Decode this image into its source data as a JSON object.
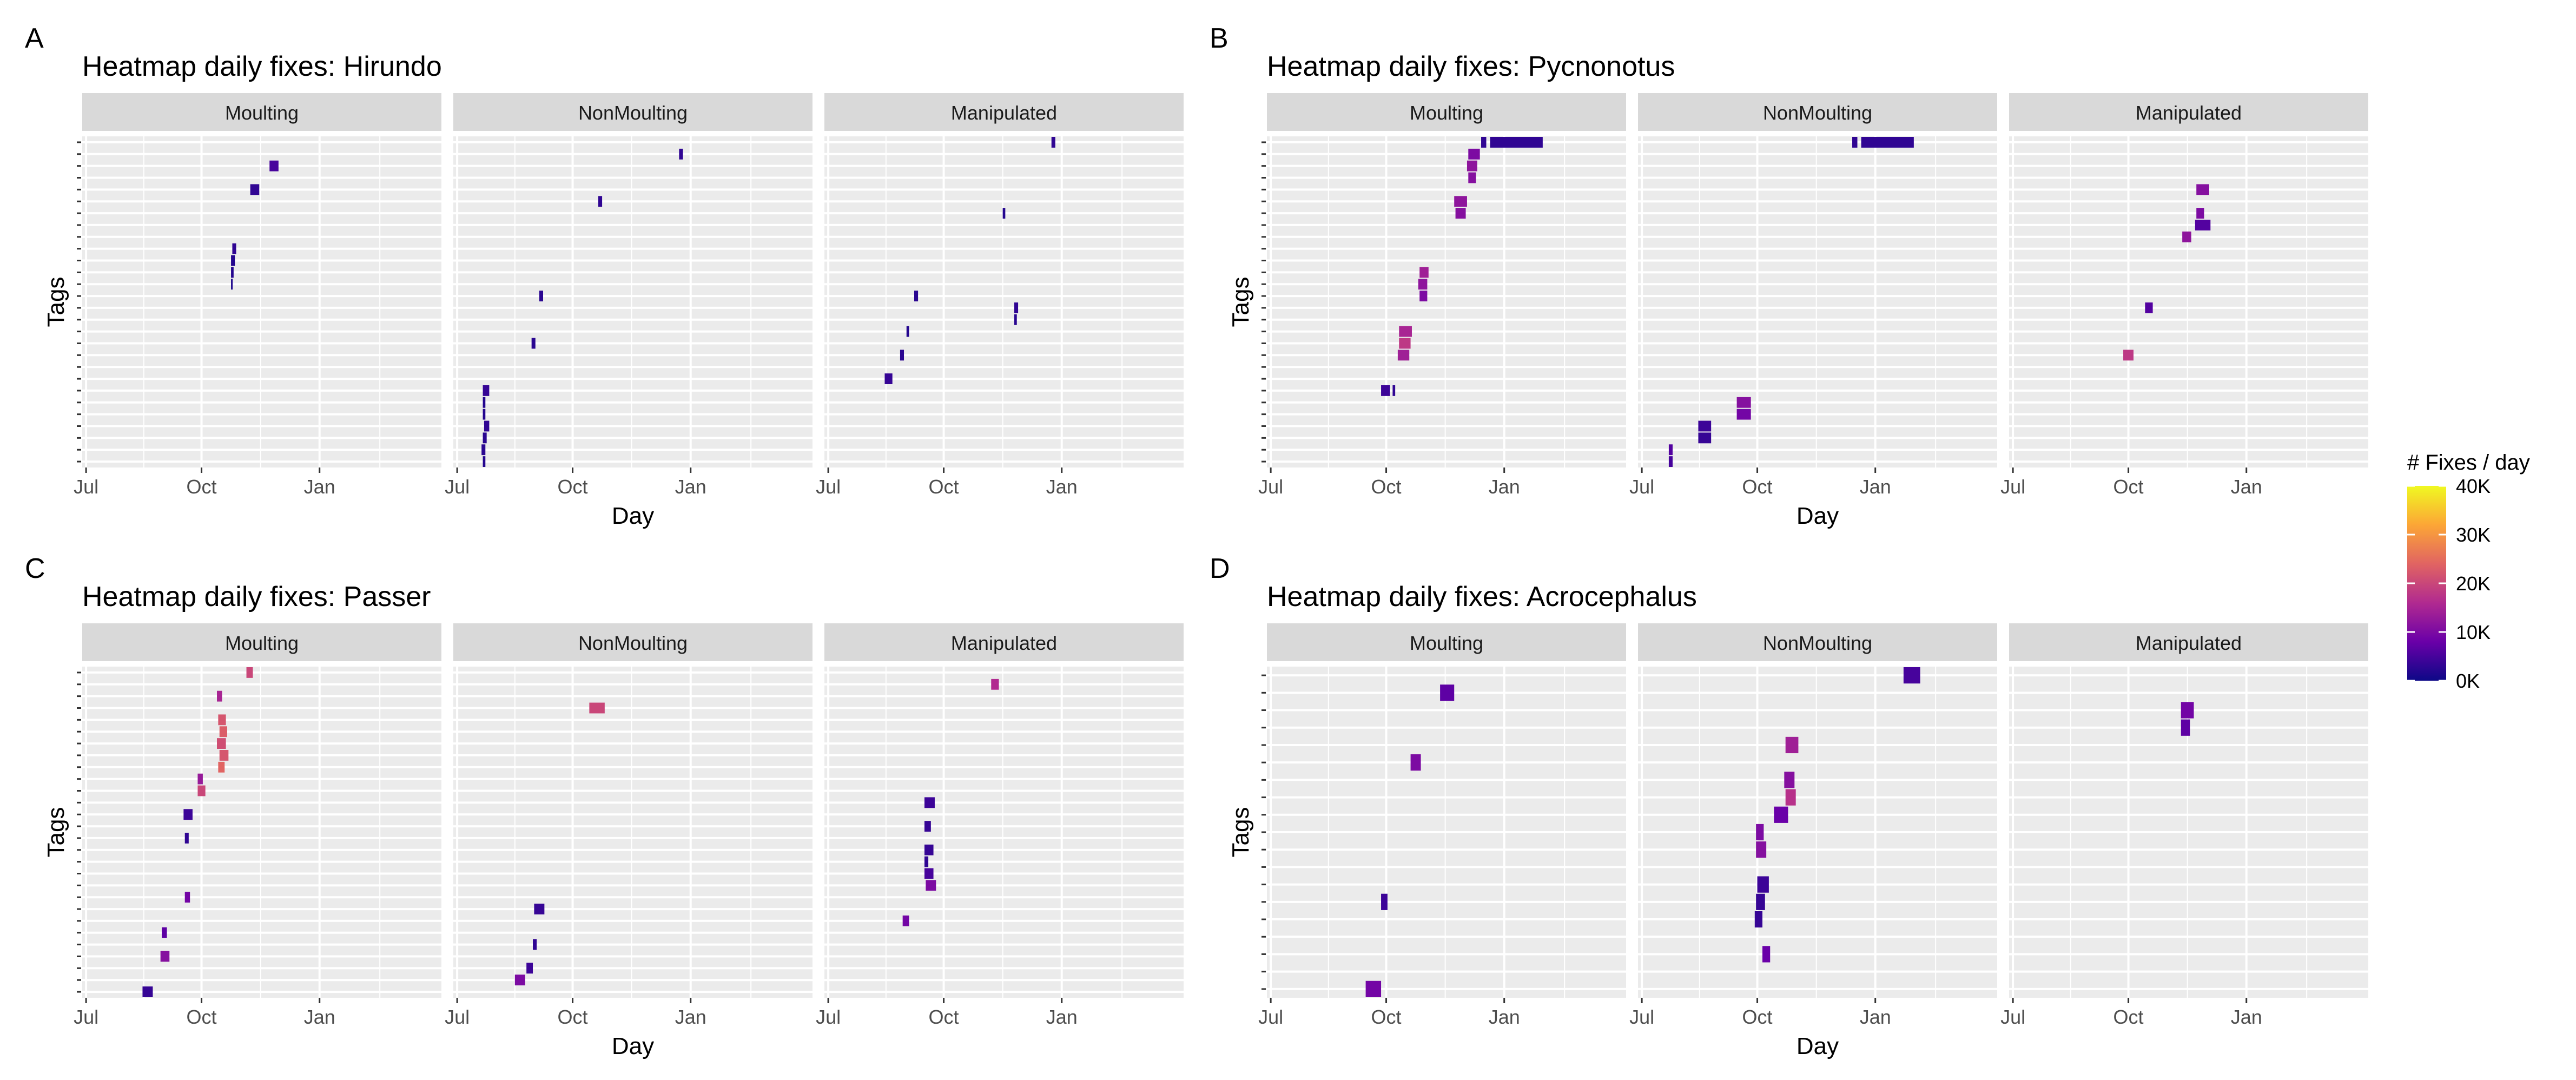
{
  "figure": {
    "x_tick_labels": [
      "Jul",
      "Oct",
      "Jan"
    ],
    "x_axis_label": "Day",
    "y_axis_label": "Tags",
    "legend": {
      "title": "# Fixes / day",
      "tick_labels": [
        "40K",
        "30K",
        "20K",
        "10K",
        "0K"
      ],
      "colormap": "plasma",
      "colors": [
        "#0d0887",
        "#6a00a8",
        "#b12a90",
        "#e16462",
        "#fca636",
        "#f0f921"
      ]
    },
    "panel_background": "#ebebeb",
    "strip_background": "#d9d9d9"
  },
  "chart_data": [
    {
      "type": "heatmap",
      "panel_letter": "A",
      "title": "Heatmap daily fixes: Hirundo",
      "xlabel": "Day",
      "ylabel": "Tags",
      "x_ticks": [
        "Jul",
        "Oct",
        "Jan"
      ],
      "xlim_days": [
        0,
        280
      ],
      "tag_count": 28,
      "facets": [
        {
          "name": "Moulting",
          "cells": [
            {
              "tag": 2,
              "start": 146,
              "end": 153,
              "value": 5000
            },
            {
              "tag": 4,
              "start": 131,
              "end": 138,
              "value": 3000
            },
            {
              "tag": 9,
              "start": 117,
              "end": 120,
              "value": 3000
            },
            {
              "tag": 10,
              "start": 116,
              "end": 119,
              "value": 2000
            },
            {
              "tag": 11,
              "start": 116,
              "end": 118,
              "value": 2000
            },
            {
              "tag": 12,
              "start": 116,
              "end": 117,
              "value": 1500
            }
          ]
        },
        {
          "name": "NonMoulting",
          "cells": [
            {
              "tag": 1,
              "start": 176,
              "end": 179,
              "value": 3000
            },
            {
              "tag": 5,
              "start": 113,
              "end": 116,
              "value": 3000
            },
            {
              "tag": 13,
              "start": 67,
              "end": 70,
              "value": 2500
            },
            {
              "tag": 17,
              "start": 61,
              "end": 64,
              "value": 2500
            },
            {
              "tag": 21,
              "start": 23,
              "end": 28,
              "value": 3500
            },
            {
              "tag": 22,
              "start": 23,
              "end": 25,
              "value": 2000
            },
            {
              "tag": 23,
              "start": 23,
              "end": 25,
              "value": 2000
            },
            {
              "tag": 24,
              "start": 24,
              "end": 28,
              "value": 3000
            },
            {
              "tag": 25,
              "start": 23,
              "end": 26,
              "value": 2500
            },
            {
              "tag": 26,
              "start": 22,
              "end": 25,
              "value": 2500
            },
            {
              "tag": 27,
              "start": 23,
              "end": 25,
              "value": 2000
            }
          ]
        },
        {
          "name": "Manipulated",
          "cells": [
            {
              "tag": 0,
              "start": 177,
              "end": 180,
              "value": 3000
            },
            {
              "tag": 6,
              "start": 139,
              "end": 141,
              "value": 2000
            },
            {
              "tag": 13,
              "start": 70,
              "end": 73,
              "value": 2500
            },
            {
              "tag": 14,
              "start": 148,
              "end": 151,
              "value": 3000
            },
            {
              "tag": 15,
              "start": 148,
              "end": 150,
              "value": 2500
            },
            {
              "tag": 16,
              "start": 64,
              "end": 66,
              "value": 2000
            },
            {
              "tag": 18,
              "start": 59,
              "end": 62,
              "value": 2500
            },
            {
              "tag": 20,
              "start": 47,
              "end": 53,
              "value": 3500
            }
          ]
        }
      ]
    },
    {
      "type": "heatmap",
      "panel_letter": "B",
      "title": "Heatmap daily fixes: Pycnonotus",
      "xlabel": "Day",
      "ylabel": "Tags",
      "x_ticks": [
        "Jul",
        "Oct",
        "Jan"
      ],
      "xlim_days": [
        0,
        280
      ],
      "tag_count": 28,
      "facets": [
        {
          "name": "Moulting",
          "cells": [
            {
              "tag": 0,
              "start": 167,
              "end": 171,
              "value": 3000
            },
            {
              "tag": 0,
              "start": 174,
              "end": 215,
              "value": 3000
            },
            {
              "tag": 1,
              "start": 157,
              "end": 166,
              "value": 10000
            },
            {
              "tag": 2,
              "start": 156,
              "end": 164,
              "value": 12000
            },
            {
              "tag": 3,
              "start": 157,
              "end": 163,
              "value": 11000
            },
            {
              "tag": 5,
              "start": 146,
              "end": 156,
              "value": 12000
            },
            {
              "tag": 6,
              "start": 147,
              "end": 155,
              "value": 11000
            },
            {
              "tag": 11,
              "start": 119,
              "end": 126,
              "value": 14000
            },
            {
              "tag": 12,
              "start": 118,
              "end": 125,
              "value": 12000
            },
            {
              "tag": 13,
              "start": 119,
              "end": 125,
              "value": 10000
            },
            {
              "tag": 16,
              "start": 103,
              "end": 113,
              "value": 15000
            },
            {
              "tag": 17,
              "start": 103,
              "end": 112,
              "value": 18000
            },
            {
              "tag": 18,
              "start": 102,
              "end": 111,
              "value": 14000
            },
            {
              "tag": 21,
              "start": 89,
              "end": 96,
              "value": 4000
            },
            {
              "tag": 21,
              "start": 98,
              "end": 100,
              "value": 3000
            }
          ]
        },
        {
          "name": "NonMoulting",
          "cells": [
            {
              "tag": 0,
              "start": 167,
              "end": 171,
              "value": 3000
            },
            {
              "tag": 0,
              "start": 174,
              "end": 215,
              "value": 3000
            },
            {
              "tag": 22,
              "start": 77,
              "end": 88,
              "value": 11000
            },
            {
              "tag": 23,
              "start": 77,
              "end": 88,
              "value": 9000
            },
            {
              "tag": 24,
              "start": 47,
              "end": 57,
              "value": 4000
            },
            {
              "tag": 25,
              "start": 47,
              "end": 57,
              "value": 3500
            },
            {
              "tag": 26,
              "start": 24,
              "end": 27,
              "value": 6000
            },
            {
              "tag": 27,
              "start": 24,
              "end": 27,
              "value": 5000
            }
          ]
        },
        {
          "name": "Manipulated",
          "cells": [
            {
              "tag": 4,
              "start": 146,
              "end": 156,
              "value": 11000
            },
            {
              "tag": 6,
              "start": 146,
              "end": 152,
              "value": 10000
            },
            {
              "tag": 7,
              "start": 145,
              "end": 157,
              "value": 6000
            },
            {
              "tag": 8,
              "start": 135,
              "end": 142,
              "value": 12000
            },
            {
              "tag": 14,
              "start": 106,
              "end": 112,
              "value": 6000
            },
            {
              "tag": 18,
              "start": 89,
              "end": 97,
              "value": 18000
            }
          ]
        }
      ]
    },
    {
      "type": "heatmap",
      "panel_letter": "C",
      "title": "Heatmap daily fixes: Passer",
      "xlabel": "Day",
      "ylabel": "Tags",
      "x_ticks": [
        "Jul",
        "Oct",
        "Jan"
      ],
      "xlim_days": [
        0,
        280
      ],
      "tag_count": 28,
      "facets": [
        {
          "name": "Moulting",
          "cells": [
            {
              "tag": 0,
              "start": 128,
              "end": 133,
              "value": 20000
            },
            {
              "tag": 2,
              "start": 105,
              "end": 109,
              "value": 15000
            },
            {
              "tag": 4,
              "start": 106,
              "end": 112,
              "value": 22000
            },
            {
              "tag": 5,
              "start": 107,
              "end": 113,
              "value": 23000
            },
            {
              "tag": 6,
              "start": 105,
              "end": 112,
              "value": 21000
            },
            {
              "tag": 7,
              "start": 107,
              "end": 114,
              "value": 22000
            },
            {
              "tag": 8,
              "start": 106,
              "end": 111,
              "value": 24000
            },
            {
              "tag": 9,
              "start": 90,
              "end": 94,
              "value": 13000
            },
            {
              "tag": 10,
              "start": 90,
              "end": 96,
              "value": 20000
            },
            {
              "tag": 12,
              "start": 79,
              "end": 86,
              "value": 4000
            },
            {
              "tag": 14,
              "start": 80,
              "end": 83,
              "value": 3000
            },
            {
              "tag": 19,
              "start": 80,
              "end": 84,
              "value": 9000
            },
            {
              "tag": 22,
              "start": 62,
              "end": 66,
              "value": 7000
            },
            {
              "tag": 24,
              "start": 61,
              "end": 68,
              "value": 11000
            },
            {
              "tag": 27,
              "start": 47,
              "end": 55,
              "value": 3500
            }
          ]
        },
        {
          "name": "NonMoulting",
          "cells": [
            {
              "tag": 3,
              "start": 106,
              "end": 118,
              "value": 20000
            },
            {
              "tag": 20,
              "start": 63,
              "end": 71,
              "value": 3500
            },
            {
              "tag": 23,
              "start": 62,
              "end": 65,
              "value": 3000
            },
            {
              "tag": 25,
              "start": 57,
              "end": 62,
              "value": 4000
            },
            {
              "tag": 26,
              "start": 48,
              "end": 56,
              "value": 10000
            }
          ]
        },
        {
          "name": "Manipulated",
          "cells": [
            {
              "tag": 1,
              "start": 130,
              "end": 136,
              "value": 16000
            },
            {
              "tag": 11,
              "start": 78,
              "end": 86,
              "value": 4000
            },
            {
              "tag": 13,
              "start": 78,
              "end": 83,
              "value": 3500
            },
            {
              "tag": 15,
              "start": 78,
              "end": 85,
              "value": 3500
            },
            {
              "tag": 16,
              "start": 78,
              "end": 81,
              "value": 3000
            },
            {
              "tag": 17,
              "start": 78,
              "end": 85,
              "value": 5000
            },
            {
              "tag": 18,
              "start": 79,
              "end": 87,
              "value": 10000
            },
            {
              "tag": 21,
              "start": 61,
              "end": 66,
              "value": 9000
            }
          ]
        }
      ]
    },
    {
      "type": "heatmap",
      "panel_letter": "D",
      "title": "Heatmap daily fixes: Acrocephalus",
      "xlabel": "Day",
      "ylabel": "Tags",
      "x_ticks": [
        "Jul",
        "Oct",
        "Jan"
      ],
      "xlim_days": [
        0,
        280
      ],
      "tag_count": 19,
      "facets": [
        {
          "name": "Moulting",
          "cells": [
            {
              "tag": 1,
              "start": 135,
              "end": 146,
              "value": 7000
            },
            {
              "tag": 5,
              "start": 112,
              "end": 120,
              "value": 10000
            },
            {
              "tag": 13,
              "start": 89,
              "end": 94,
              "value": 4000
            },
            {
              "tag": 18,
              "start": 77,
              "end": 89,
              "value": 9000
            }
          ]
        },
        {
          "name": "NonMoulting",
          "cells": [
            {
              "tag": 0,
              "start": 207,
              "end": 220,
              "value": 5000
            },
            {
              "tag": 4,
              "start": 115,
              "end": 125,
              "value": 14000
            },
            {
              "tag": 6,
              "start": 114,
              "end": 122,
              "value": 11000
            },
            {
              "tag": 7,
              "start": 115,
              "end": 123,
              "value": 17000
            },
            {
              "tag": 8,
              "start": 106,
              "end": 117,
              "value": 8000
            },
            {
              "tag": 9,
              "start": 92,
              "end": 98,
              "value": 10000
            },
            {
              "tag": 10,
              "start": 92,
              "end": 100,
              "value": 11000
            },
            {
              "tag": 12,
              "start": 93,
              "end": 102,
              "value": 4000
            },
            {
              "tag": 13,
              "start": 92,
              "end": 99,
              "value": 3500
            },
            {
              "tag": 14,
              "start": 91,
              "end": 97,
              "value": 3500
            },
            {
              "tag": 16,
              "start": 97,
              "end": 103,
              "value": 8000
            }
          ]
        },
        {
          "name": "Manipulated",
          "cells": [
            {
              "tag": 2,
              "start": 134,
              "end": 144,
              "value": 9000
            },
            {
              "tag": 3,
              "start": 134,
              "end": 141,
              "value": 7000
            }
          ]
        }
      ]
    }
  ]
}
